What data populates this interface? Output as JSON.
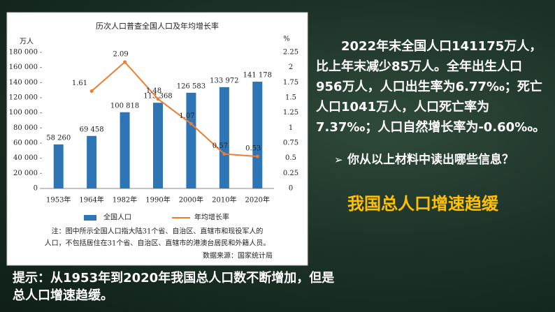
{
  "chart_data": {
    "type": "bar-line",
    "title": "历次人口普查全国人口及年均增长率",
    "y_unit": "万人",
    "y2_unit": "%",
    "categories": [
      "1953年",
      "1964年",
      "1982年",
      "1990年",
      "2000年",
      "2010年",
      "2020年"
    ],
    "series": [
      {
        "name": "全国人口",
        "type": "bar",
        "color": "#2e75b6",
        "values": [
          58260,
          69458,
          100818,
          113368,
          126583,
          133972,
          141178
        ],
        "value_labels": [
          "58 260",
          "69 458",
          "100 818",
          "113 368",
          "126 583",
          "133 972",
          "141 178"
        ]
      },
      {
        "name": "年均增长率",
        "type": "line",
        "axis": "y2",
        "color": "#ed7d31",
        "values": [
          null,
          1.61,
          2.09,
          1.48,
          1.07,
          0.57,
          0.53
        ]
      }
    ],
    "ylim": [
      0,
      180000
    ],
    "yticks": [
      0,
      {
        "value": 20000,
        "label": "20 000"
      },
      {
        "value": 40000,
        "label": "40 000"
      },
      {
        "value": 60000,
        "label": "60 000"
      },
      {
        "value": 80000,
        "label": "80 000"
      },
      {
        "value": 100000,
        "label": "100 000"
      },
      {
        "value": 120000,
        "label": "120 000"
      },
      {
        "value": 140000,
        "label": "140 000"
      },
      {
        "value": 160000,
        "label": "160 000"
      },
      {
        "value": 180000,
        "label": "180 000"
      }
    ],
    "y2lim": [
      0,
      2.25
    ],
    "y2ticks": [
      0,
      0.25,
      0.5,
      0.75,
      1,
      1.25,
      1.5,
      1.75,
      2,
      2.25
    ],
    "note": [
      "注：图中所示全国人口指大陆31个省、自治区、直辖市和现役军人的",
      "人口，不包括居住在31个省、自治区、直辖市的港澳台居民和外籍人员。"
    ],
    "source": "数据来源：国家统计局"
  },
  "slide": {
    "paragraph": "2022年末全国人口141175万人，比上年末减少85万人。全年出生人口956万人，人口出生率为6.77‰；死亡人口1041万人，人口死亡率为7.37‰；人口自然增长率为-0.60‰。",
    "question": "你从以上材料中读出哪些信息？",
    "answer": "我国总人口增速趋缓",
    "hint": "提示：从1953年到2020年我国总人口数不断增加，但是总人口增速趋缓。"
  }
}
